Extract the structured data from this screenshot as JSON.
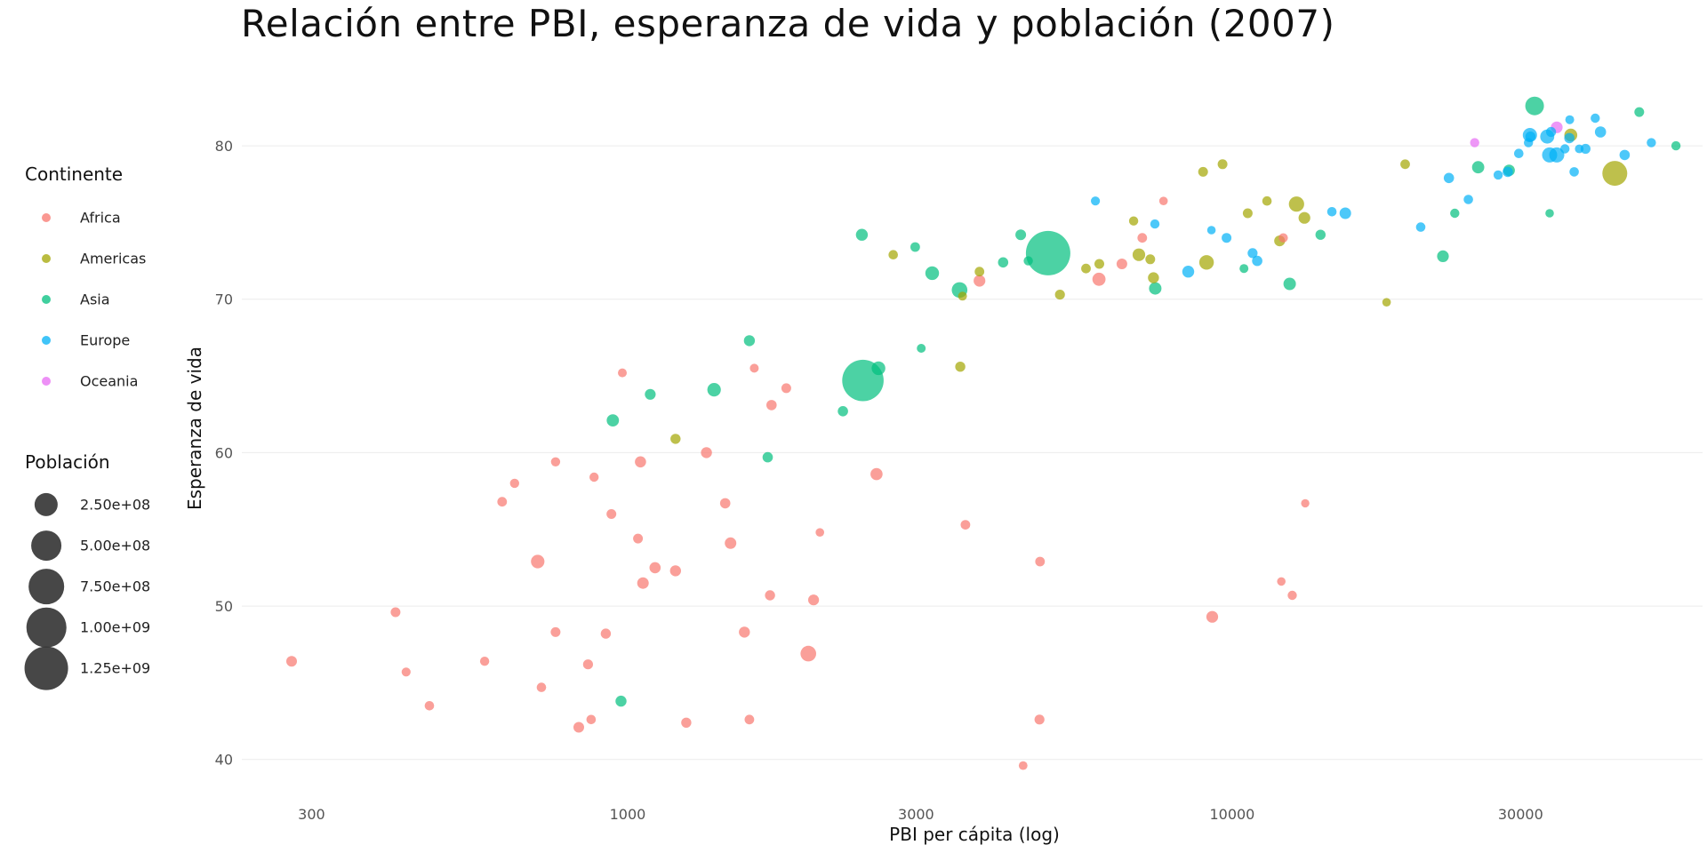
{
  "chart_data": {
    "type": "scatter",
    "title": "Relación entre PBI, esperanza de vida y población (2007)",
    "xlabel": "PBI per cápita (log)",
    "ylabel": "Esperanza de vida",
    "x_scale": "log",
    "xlim": [
      230,
      60000
    ],
    "ylim": [
      39,
      84
    ],
    "x_ticks": [
      300,
      1000,
      3000,
      10000,
      30000
    ],
    "x_tick_labels": [
      "300",
      "1000",
      "3000",
      "10000",
      "30000"
    ],
    "y_ticks": [
      40,
      50,
      60,
      70,
      80
    ],
    "y_tick_labels": [
      "40",
      "50",
      "60",
      "70",
      "80"
    ],
    "grid": true,
    "legend_placement": "left",
    "color_legend": {
      "title": "Continente",
      "entries": [
        {
          "name": "Africa",
          "color": "#F8766D"
        },
        {
          "name": "Americas",
          "color": "#A3A500"
        },
        {
          "name": "Asia",
          "color": "#00BF7D"
        },
        {
          "name": "Europe",
          "color": "#00B0F6"
        },
        {
          "name": "Oceania",
          "color": "#E76BF3"
        }
      ]
    },
    "size_legend": {
      "title": "Población",
      "entries": [
        {
          "label": "2.50e+08",
          "value": 250000000
        },
        {
          "label": "5.00e+08",
          "value": 500000000
        },
        {
          "label": "7.50e+08",
          "value": 750000000
        },
        {
          "label": "1.00e+09",
          "value": 1000000000
        },
        {
          "label": "1.25e+09",
          "value": 1250000000
        }
      ]
    },
    "series": [
      {
        "name": "Africa",
        "points": [
          [
            278,
            46.4,
            12000000
          ],
          [
            413,
            49.6,
            7000000
          ],
          [
            430,
            45.7,
            3500000
          ],
          [
            470,
            43.5,
            5000000
          ],
          [
            580,
            46.4,
            4000000
          ],
          [
            620,
            56.8,
            6000000
          ],
          [
            650,
            58.0,
            4500000
          ],
          [
            710,
            52.9,
            38000000
          ],
          [
            720,
            44.7,
            5000000
          ],
          [
            760,
            59.4,
            4000000
          ],
          [
            760,
            48.3,
            7000000
          ],
          [
            830,
            42.1,
            12000000
          ],
          [
            860,
            46.2,
            8000000
          ],
          [
            870,
            42.6,
            5000000
          ],
          [
            880,
            58.4,
            4000000
          ],
          [
            920,
            48.2,
            9000000
          ],
          [
            940,
            56.0,
            7000000
          ],
          [
            980,
            65.2,
            3000000
          ],
          [
            1040,
            54.4,
            7000000
          ],
          [
            1050,
            59.4,
            16000000
          ],
          [
            1060,
            51.5,
            19000000
          ],
          [
            1110,
            52.5,
            16000000
          ],
          [
            1200,
            52.3,
            15000000
          ],
          [
            1250,
            42.4,
            9000000
          ],
          [
            1350,
            60.0,
            14000000
          ],
          [
            1450,
            56.7,
            10000000
          ],
          [
            1480,
            54.1,
            19000000
          ],
          [
            1560,
            48.3,
            14000000
          ],
          [
            1590,
            42.6,
            6000000
          ],
          [
            1620,
            65.5,
            3000000
          ],
          [
            1720,
            50.7,
            9000000
          ],
          [
            1730,
            63.1,
            10000000
          ],
          [
            1830,
            64.2,
            7000000
          ],
          [
            1990,
            46.9,
            70000000
          ],
          [
            2030,
            50.4,
            13000000
          ],
          [
            2080,
            54.8,
            2000000
          ],
          [
            2580,
            58.6,
            24000000
          ],
          [
            3620,
            55.3,
            6000000
          ],
          [
            3820,
            71.2,
            20000000
          ],
          [
            4510,
            39.6,
            2500000
          ],
          [
            4800,
            42.6,
            8000000
          ],
          [
            4810,
            52.9,
            6000000
          ],
          [
            6020,
            71.3,
            34000000
          ],
          [
            6570,
            72.3,
            12000000
          ],
          [
            7100,
            74.0,
            6000000
          ],
          [
            7700,
            76.4,
            2000000
          ],
          [
            9270,
            49.3,
            20000000
          ],
          [
            12060,
            51.6,
            2000000
          ],
          [
            12150,
            74.0,
            4000000
          ],
          [
            12570,
            50.7,
            4000000
          ],
          [
            13210,
            56.7,
            1500000
          ]
        ]
      },
      {
        "name": "Americas",
        "points": [
          [
            1200,
            60.9,
            9000000
          ],
          [
            2750,
            72.9,
            5000000
          ],
          [
            3550,
            65.6,
            9000000
          ],
          [
            3580,
            70.2,
            3000000
          ],
          [
            3820,
            71.8,
            6000000
          ],
          [
            5190,
            70.3,
            8000000
          ],
          [
            5730,
            72.0,
            6000000
          ],
          [
            6030,
            72.3,
            7000000
          ],
          [
            6870,
            75.1,
            4000000
          ],
          [
            7010,
            72.9,
            29000000
          ],
          [
            7320,
            72.6,
            7000000
          ],
          [
            7410,
            71.4,
            14000000
          ],
          [
            8950,
            78.3,
            7000000
          ],
          [
            9070,
            72.4,
            54000000
          ],
          [
            9640,
            78.8,
            7000000
          ],
          [
            10610,
            75.6,
            7000000
          ],
          [
            11420,
            76.4,
            5000000
          ],
          [
            11980,
            73.8,
            13000000
          ],
          [
            12780,
            76.2,
            64000000
          ],
          [
            13170,
            75.3,
            21000000
          ],
          [
            18010,
            69.8,
            2000000
          ],
          [
            19330,
            78.8,
            6000000
          ],
          [
            36320,
            80.7,
            33000000
          ],
          [
            42950,
            78.2,
            301000000
          ]
        ]
      },
      {
        "name": "Asia",
        "points": [
          [
            975,
            43.8,
            14000000
          ],
          [
            945,
            62.1,
            25000000
          ],
          [
            1090,
            63.8,
            13000000
          ],
          [
            1390,
            64.1,
            39000000
          ],
          [
            1590,
            67.3,
            15000000
          ],
          [
            1705,
            59.7,
            10000000
          ],
          [
            2450,
            64.7,
            1110000000
          ],
          [
            2270,
            62.7,
            10000000
          ],
          [
            2600,
            65.5,
            40000000
          ],
          [
            2440,
            74.2,
            22000000
          ],
          [
            2990,
            73.4,
            6000000
          ],
          [
            3060,
            66.8,
            3000000
          ],
          [
            3190,
            71.7,
            40000000
          ],
          [
            3540,
            70.6,
            69000000
          ],
          [
            4180,
            72.4,
            10000000
          ],
          [
            4470,
            74.2,
            12000000
          ],
          [
            4600,
            72.5,
            4000000
          ],
          [
            4960,
            73.0,
            1320000000
          ],
          [
            7460,
            70.7,
            27000000
          ],
          [
            10460,
            72.0,
            3000000
          ],
          [
            12450,
            71.0,
            27000000
          ],
          [
            14000,
            74.2,
            9000000
          ],
          [
            22320,
            72.8,
            20000000
          ],
          [
            23350,
            75.6,
            4000000
          ],
          [
            25520,
            78.6,
            25000000
          ],
          [
            28720,
            78.4,
            18000000
          ],
          [
            31650,
            82.6,
            127000000
          ],
          [
            33510,
            75.6,
            2000000
          ],
          [
            47140,
            82.2,
            7000000
          ],
          [
            54220,
            80.0,
            4000000
          ]
        ]
      },
      {
        "name": "Europe",
        "points": [
          [
            5940,
            76.4,
            3500000
          ],
          [
            7450,
            74.9,
            4000000
          ],
          [
            8460,
            71.8,
            22000000
          ],
          [
            9240,
            74.5,
            2000000
          ],
          [
            9790,
            74.0,
            7000000
          ],
          [
            10810,
            73.0,
            8000000
          ],
          [
            11000,
            72.5,
            10000000
          ],
          [
            14620,
            75.7,
            5000000
          ],
          [
            15390,
            75.6,
            19000000
          ],
          [
            20510,
            74.7,
            5000000
          ],
          [
            22830,
            77.9,
            10000000
          ],
          [
            24590,
            76.5,
            5000000
          ],
          [
            27540,
            78.1,
            4000000
          ],
          [
            28570,
            78.3,
            10000000
          ],
          [
            29800,
            79.5,
            5000000
          ],
          [
            30920,
            80.2,
            4000000
          ],
          [
            31080,
            80.7,
            47000000
          ],
          [
            33210,
            80.6,
            45000000
          ],
          [
            33510,
            79.4,
            61000000
          ],
          [
            34430,
            79.4,
            60000000
          ],
          [
            35520,
            79.8,
            4000000
          ],
          [
            36800,
            78.3,
            5000000
          ],
          [
            36130,
            80.5,
            10000000
          ],
          [
            36180,
            81.7,
            3000000
          ],
          [
            37510,
            79.8,
            2500000
          ],
          [
            38420,
            79.8,
            8000000
          ],
          [
            39870,
            81.8,
            4000000
          ],
          [
            33690,
            80.9,
            8000000
          ],
          [
            49360,
            80.2,
            4500000
          ],
          [
            40680,
            80.9,
            16000000
          ],
          [
            44600,
            79.4,
            10000000
          ],
          [
            31150,
            80.6,
            9000000
          ]
        ]
      },
      {
        "name": "Oceania",
        "points": [
          [
            25185,
            80.2,
            4100000
          ],
          [
            34435,
            81.2,
            20400000
          ]
        ]
      }
    ]
  }
}
